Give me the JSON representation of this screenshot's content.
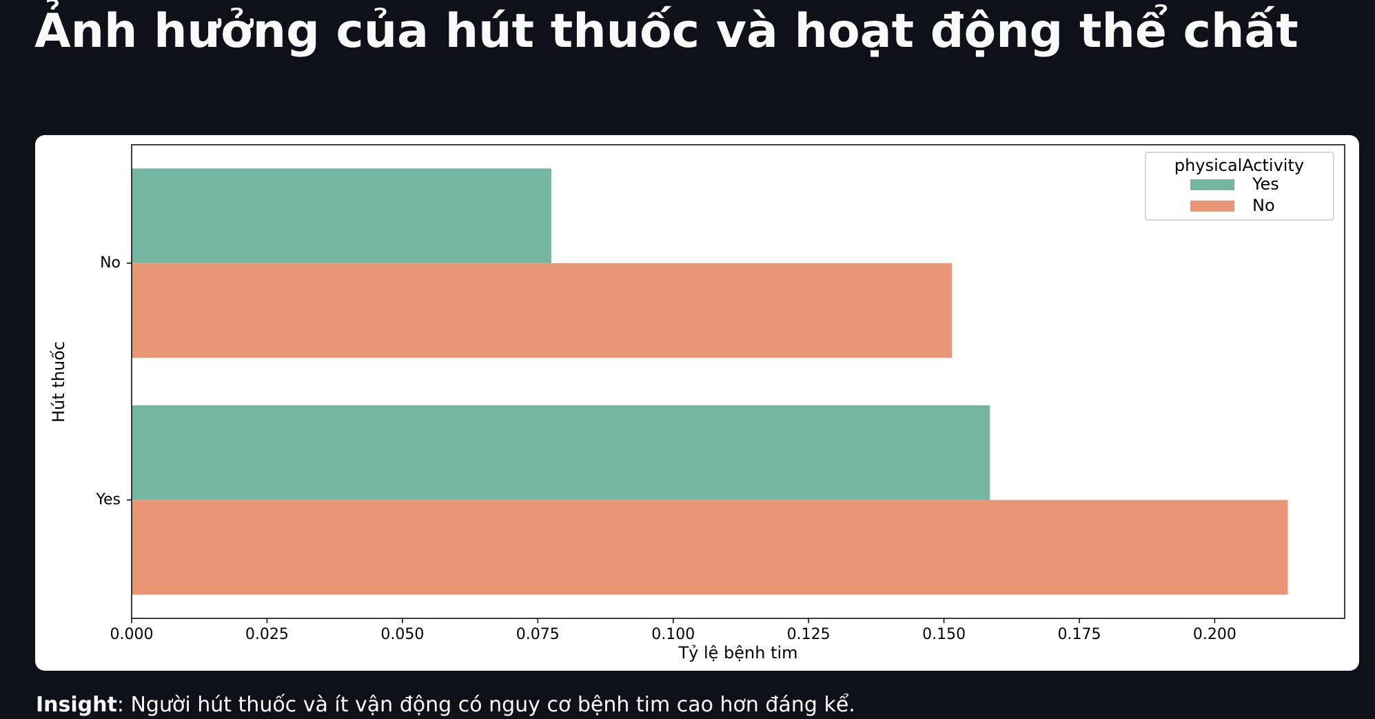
{
  "page": {
    "title": "Ảnh hưởng của hút thuốc và hoạt động thể chất",
    "insight_label": "Insight",
    "insight_text": ": Người hút thuốc và ít vận động có nguy cơ bệnh tim cao hơn đáng kể."
  },
  "theme": {
    "background": "#0e1117",
    "card": "#ffffff",
    "series_yes": "#74b6a1",
    "series_no": "#e89675"
  },
  "chart_data": {
    "type": "bar",
    "orientation": "horizontal",
    "title": "",
    "xlabel": "Tỷ lệ bệnh tim",
    "ylabel": "Hút thuốc",
    "categories": [
      "No",
      "Yes"
    ],
    "series": [
      {
        "name": "Yes",
        "values": [
          0.0775,
          0.1585
        ],
        "color": "#74b6a1"
      },
      {
        "name": "No",
        "values": [
          0.1515,
          0.2135
        ],
        "color": "#e89675"
      }
    ],
    "xlim": [
      0,
      0.224
    ],
    "xticks": [
      "0.000",
      "0.025",
      "0.050",
      "0.075",
      "0.100",
      "0.125",
      "0.150",
      "0.175",
      "0.200"
    ],
    "legend": {
      "title": "physicalActivity",
      "placement": "top-right"
    },
    "grid": false
  }
}
